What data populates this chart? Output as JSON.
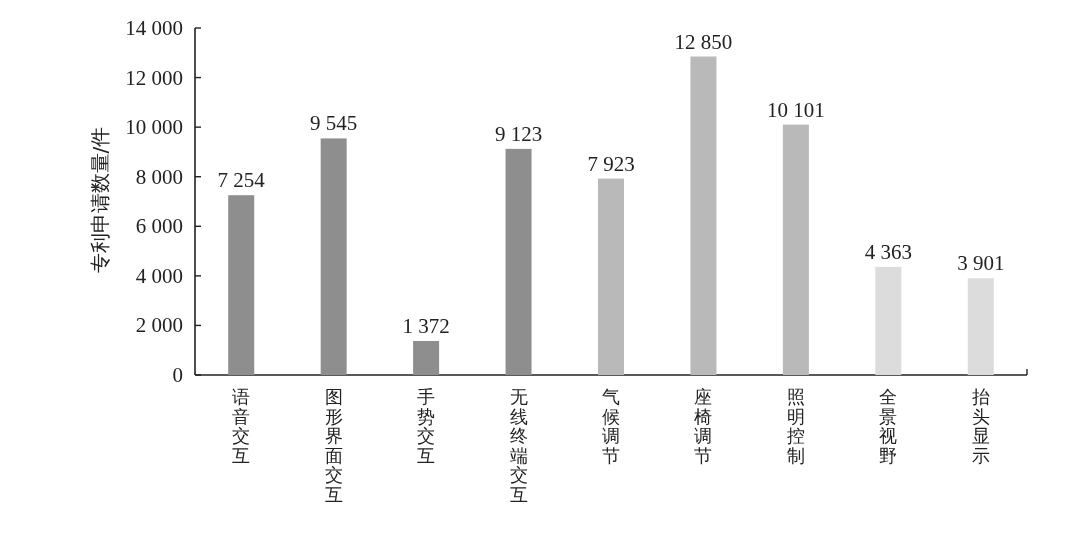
{
  "chart_data": {
    "type": "bar",
    "ylabel": "专利申请数量/件",
    "categories": [
      "语音交互",
      "图形界面交互",
      "手势交互",
      "无线终端交互",
      "气候调节",
      "座椅调节",
      "照明控制",
      "全景视野",
      "抬头显示"
    ],
    "values": [
      7254,
      9545,
      1372,
      9123,
      7923,
      12850,
      10101,
      4363,
      3901
    ],
    "colors": [
      "#8e8e8e",
      "#8e8e8e",
      "#8e8e8e",
      "#8e8e8e",
      "#b9b9b9",
      "#b9b9b9",
      "#b9b9b9",
      "#dcdcdc",
      "#dcdcdc"
    ],
    "value_labels": [
      "7 254",
      "9 545",
      "1 372",
      "9 123",
      "7 923",
      "12 850",
      "10 101",
      "4 363",
      "3 901"
    ],
    "ylim": [
      0,
      14000
    ],
    "yticks": [
      0,
      {
        "value": 2000,
        "label": "2 000"
      },
      {
        "value": 4000,
        "label": "4 000"
      },
      {
        "value": 6000,
        "label": "6 000"
      },
      {
        "value": 8000,
        "label": "8 000"
      },
      {
        "value": 10000,
        "label": "10 000"
      },
      {
        "value": 12000,
        "label": "12 000"
      },
      {
        "value": 14000,
        "label": "14 000"
      }
    ]
  }
}
